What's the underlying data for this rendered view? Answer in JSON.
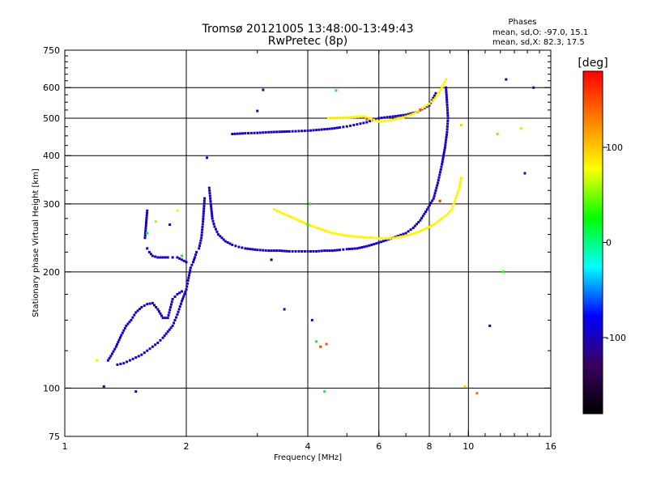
{
  "chart_data": {
    "type": "scatter",
    "title": "Tromsø 20121005 13:48:00-13:49:43",
    "subtitle": "RwPretec (8p)",
    "xlabel": "Frequency [MHz]",
    "ylabel": "Stationary phase Virtual Height [km]",
    "xscale": "log",
    "yscale": "log",
    "xlim": [
      1,
      16
    ],
    "ylim": [
      75,
      750
    ],
    "x_ticks": [
      {
        "value": 1,
        "label": "1"
      },
      {
        "value": 2,
        "label": "2"
      },
      {
        "value": 4,
        "label": "4"
      },
      {
        "value": 6,
        "label": "6"
      },
      {
        "value": 8,
        "label": "8"
      },
      {
        "value": 10,
        "label": "10"
      },
      {
        "value": 16,
        "label": "16"
      }
    ],
    "x_grid": [
      2,
      4,
      6,
      8,
      10
    ],
    "y_ticks": [
      {
        "value": 75,
        "label": "75"
      },
      {
        "value": 100,
        "label": "100"
      },
      {
        "value": 200,
        "label": "200"
      },
      {
        "value": 300,
        "label": "300"
      },
      {
        "value": 400,
        "label": "400"
      },
      {
        "value": 500,
        "label": "500"
      },
      {
        "value": 600,
        "label": "600"
      },
      {
        "value": 750,
        "label": "750"
      }
    ],
    "y_grid": [
      100,
      200,
      300,
      400,
      500,
      600
    ],
    "grid": true,
    "phase_box": {
      "heading": "Phases",
      "line_o": "mean, sd,O: -97.0, 15.1",
      "line_x": "mean, sd,X: 82.3, 17.5"
    },
    "colorbar": {
      "label": "[deg]",
      "range": [
        -180,
        180
      ],
      "ticks": [
        {
          "value": 100,
          "label": "100"
        },
        {
          "value": 0,
          "label": "0"
        },
        {
          "value": -100,
          "label": "-100"
        }
      ],
      "colors": [
        "#000000",
        "#3a0060",
        "#0000ff",
        "#00ffff",
        "#00ff00",
        "#ffff00",
        "#ff8000",
        "#ff0000"
      ]
    },
    "traces": [
      {
        "mode": "O",
        "phase": -97,
        "points": [
          [
            1.28,
            118
          ],
          [
            1.3,
            121
          ],
          [
            1.34,
            128
          ],
          [
            1.38,
            137
          ],
          [
            1.42,
            145
          ],
          [
            1.46,
            150
          ],
          [
            1.5,
            157
          ],
          [
            1.55,
            162
          ],
          [
            1.6,
            165
          ],
          [
            1.65,
            166
          ],
          [
            1.7,
            160
          ],
          [
            1.75,
            152
          ],
          [
            1.8,
            152
          ],
          [
            1.85,
            170
          ],
          [
            1.9,
            175
          ],
          [
            1.95,
            178
          ],
          [
            2.0,
            180
          ],
          [
            2.02,
            190
          ],
          [
            2.05,
            205
          ],
          [
            2.08,
            212
          ],
          [
            2.1,
            218
          ],
          [
            2.12,
            225
          ],
          [
            2.15,
            230
          ],
          [
            2.18,
            245
          ],
          [
            2.2,
            270
          ],
          [
            2.22,
            310
          ],
          [
            2.25,
            395
          ],
          [
            1.35,
            115
          ],
          [
            1.4,
            116
          ],
          [
            1.45,
            118
          ],
          [
            1.5,
            120
          ],
          [
            1.55,
            122
          ],
          [
            1.6,
            125
          ],
          [
            1.65,
            128
          ],
          [
            1.7,
            131
          ],
          [
            1.75,
            135
          ],
          [
            1.8,
            140
          ],
          [
            1.85,
            145
          ],
          [
            1.9,
            155
          ],
          [
            1.95,
            168
          ],
          [
            2.0,
            180
          ],
          [
            1.6,
            230
          ],
          [
            1.62,
            225
          ],
          [
            1.65,
            220
          ],
          [
            1.7,
            218
          ],
          [
            1.75,
            218
          ],
          [
            1.8,
            218
          ],
          [
            1.85,
            218
          ],
          [
            1.9,
            218
          ],
          [
            1.95,
            215
          ],
          [
            2.0,
            212
          ],
          [
            1.58,
            245
          ],
          [
            1.6,
            288
          ],
          [
            2.28,
            330
          ],
          [
            2.3,
            300
          ],
          [
            2.32,
            275
          ],
          [
            2.35,
            262
          ],
          [
            2.4,
            250
          ],
          [
            2.45,
            245
          ],
          [
            2.5,
            240
          ],
          [
            2.6,
            235
          ],
          [
            2.7,
            232
          ],
          [
            2.8,
            230
          ],
          [
            3.0,
            228
          ],
          [
            3.2,
            227
          ],
          [
            3.4,
            227
          ],
          [
            3.6,
            226
          ],
          [
            3.8,
            226
          ],
          [
            4.0,
            226
          ],
          [
            4.2,
            226
          ],
          [
            4.4,
            227
          ],
          [
            4.6,
            227
          ],
          [
            4.8,
            228
          ],
          [
            5.0,
            229
          ],
          [
            5.3,
            230
          ],
          [
            5.6,
            233
          ],
          [
            6.0,
            238
          ],
          [
            6.5,
            245
          ],
          [
            7.0,
            252
          ],
          [
            7.3,
            260
          ],
          [
            7.6,
            272
          ],
          [
            7.9,
            290
          ],
          [
            8.2,
            310
          ],
          [
            8.4,
            340
          ],
          [
            8.6,
            380
          ],
          [
            8.75,
            420
          ],
          [
            8.85,
            460
          ],
          [
            8.9,
            500
          ],
          [
            8.85,
            550
          ],
          [
            8.8,
            600
          ],
          [
            2.6,
            455
          ],
          [
            2.8,
            457
          ],
          [
            3.0,
            458
          ],
          [
            3.2,
            460
          ],
          [
            3.4,
            461
          ],
          [
            3.6,
            462
          ],
          [
            3.8,
            463
          ],
          [
            4.0,
            464
          ],
          [
            4.2,
            466
          ],
          [
            4.4,
            468
          ],
          [
            4.6,
            470
          ],
          [
            4.8,
            473
          ],
          [
            5.0,
            476
          ],
          [
            5.2,
            480
          ],
          [
            5.4,
            484
          ],
          [
            5.6,
            488
          ],
          [
            5.8,
            495
          ],
          [
            6.0,
            500
          ],
          [
            6.5,
            505
          ],
          [
            7.0,
            510
          ],
          [
            7.5,
            520
          ],
          [
            8.0,
            540
          ],
          [
            8.3,
            580
          ]
        ]
      },
      {
        "mode": "X",
        "phase": 82,
        "points": [
          [
            3.3,
            290
          ],
          [
            3.5,
            282
          ],
          [
            3.7,
            275
          ],
          [
            4.0,
            265
          ],
          [
            4.3,
            258
          ],
          [
            4.6,
            252
          ],
          [
            5.0,
            248
          ],
          [
            5.4,
            246
          ],
          [
            5.8,
            245
          ],
          [
            6.0,
            244
          ],
          [
            6.3,
            244
          ],
          [
            6.6,
            245
          ],
          [
            7.0,
            248
          ],
          [
            7.4,
            252
          ],
          [
            7.8,
            258
          ],
          [
            8.2,
            265
          ],
          [
            8.5,
            272
          ],
          [
            8.8,
            280
          ],
          [
            9.1,
            290
          ],
          [
            9.3,
            310
          ],
          [
            9.5,
            330
          ],
          [
            9.6,
            350
          ],
          [
            4.5,
            500
          ],
          [
            5.0,
            502
          ],
          [
            5.5,
            505
          ],
          [
            6.0,
            490
          ],
          [
            6.4,
            493
          ],
          [
            6.8,
            500
          ],
          [
            7.2,
            510
          ],
          [
            7.6,
            525
          ],
          [
            8.0,
            545
          ],
          [
            8.3,
            565
          ],
          [
            8.6,
            600
          ],
          [
            8.8,
            630
          ]
        ]
      }
    ],
    "scattered": [
      [
        1.25,
        101,
        -115
      ],
      [
        1.2,
        118,
        85
      ],
      [
        1.5,
        98,
        -110
      ],
      [
        1.68,
        270,
        95
      ],
      [
        1.82,
        265,
        -100
      ],
      [
        1.9,
        288,
        85
      ],
      [
        1.95,
        220,
        20
      ],
      [
        1.6,
        252,
        20
      ],
      [
        3.1,
        592,
        -110
      ],
      [
        3.0,
        522,
        -110
      ],
      [
        3.25,
        215,
        -150
      ],
      [
        3.5,
        160,
        -100
      ],
      [
        4.0,
        265,
        20
      ],
      [
        4.05,
        300,
        20
      ],
      [
        4.1,
        150,
        -100
      ],
      [
        4.2,
        132,
        20
      ],
      [
        4.3,
        128,
        150
      ],
      [
        4.45,
        130,
        150
      ],
      [
        4.4,
        98,
        15
      ],
      [
        4.7,
        590,
        15
      ],
      [
        5.6,
        497,
        150
      ],
      [
        7.6,
        526,
        150
      ],
      [
        8.5,
        305,
        160
      ],
      [
        9.6,
        480,
        95
      ],
      [
        9.8,
        101,
        95
      ],
      [
        10.5,
        97,
        140
      ],
      [
        11.3,
        145,
        -100
      ],
      [
        12.4,
        630,
        -110
      ],
      [
        12.2,
        200,
        30
      ],
      [
        13.5,
        470,
        95
      ],
      [
        13.8,
        360,
        -100
      ],
      [
        14.5,
        600,
        -110
      ],
      [
        11.8,
        455,
        50
      ]
    ]
  }
}
